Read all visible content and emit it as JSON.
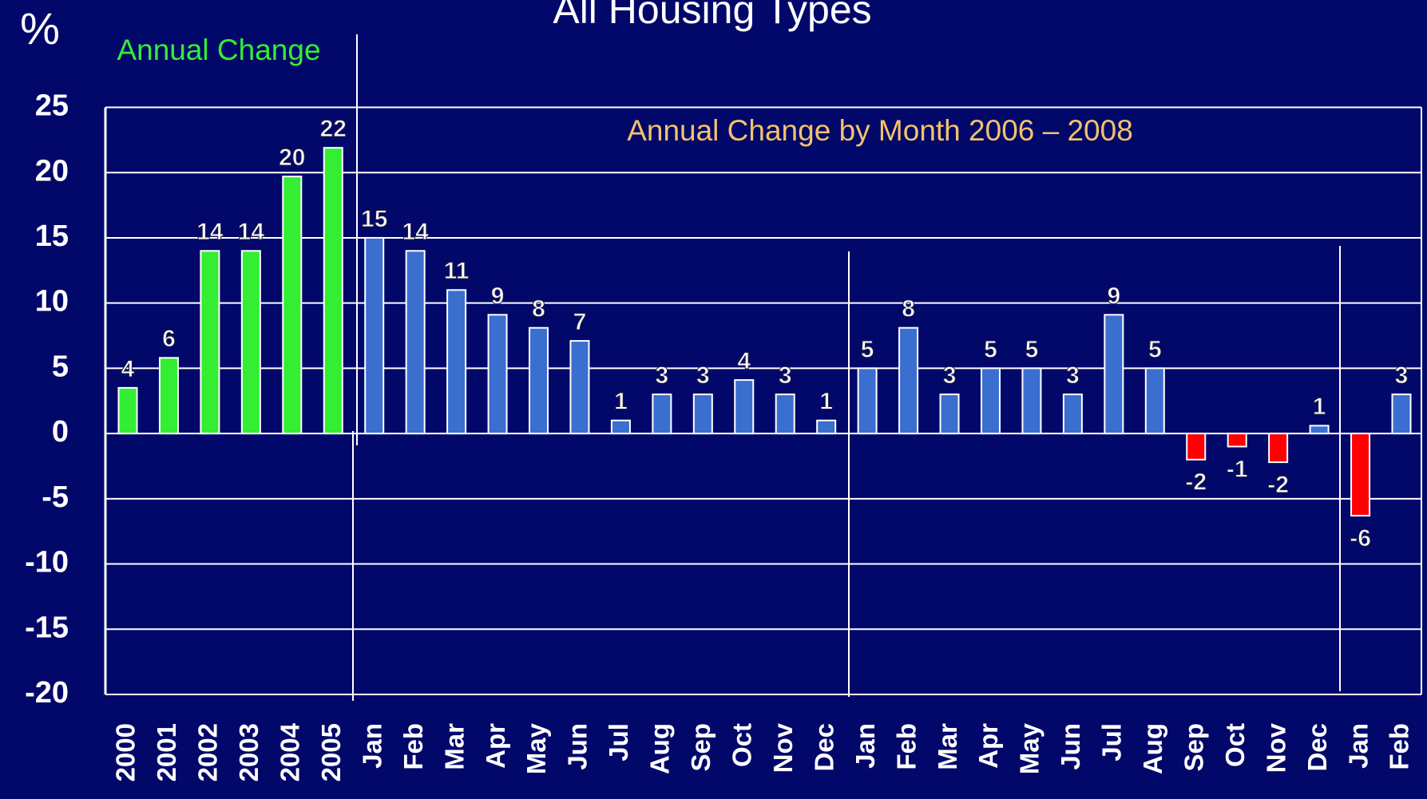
{
  "chart_data": {
    "type": "bar",
    "title": "All Housing Types",
    "ylabel": "%",
    "annotations": [
      "Annual Change",
      "Annual Change by Month 2006 – 2008"
    ],
    "categories": [
      "2000",
      "2001",
      "2002",
      "2003",
      "2004",
      "2005",
      "Jan",
      "Feb",
      "Mar",
      "Apr",
      "May",
      "Jun",
      "Jul",
      "Aug",
      "Sep",
      "Oct",
      "Nov",
      "Dec",
      "Jan",
      "Feb",
      "Mar",
      "Apr",
      "May",
      "Jun",
      "Jul",
      "Aug",
      "Sep",
      "Oct",
      "Nov",
      "Dec",
      "Jan",
      "Feb"
    ],
    "values": [
      3.5,
      5.8,
      14,
      14,
      19.7,
      21.9,
      15,
      14,
      11,
      9.1,
      8.1,
      7.1,
      1,
      3,
      3,
      4.1,
      3,
      1,
      5,
      8.1,
      3,
      5,
      5,
      3,
      9.1,
      5,
      -2,
      -1,
      -2.2,
      0.6,
      -6.3,
      3
    ],
    "value_labels": [
      "4",
      "6",
      "14",
      "14",
      "20",
      "22",
      "15",
      "14",
      "11",
      "9",
      "8",
      "7",
      "1",
      "3",
      "3",
      "4",
      "3",
      "1",
      "5",
      "8",
      "3",
      "5",
      "5",
      "3",
      "9",
      "5",
      "-2",
      "-1",
      "-2",
      "1",
      "-6",
      "3"
    ],
    "colors": [
      "#33ee33",
      "#33ee33",
      "#33ee33",
      "#33ee33",
      "#33ee33",
      "#33ee33",
      "#3a6fd0",
      "#3a6fd0",
      "#3a6fd0",
      "#3a6fd0",
      "#3a6fd0",
      "#3a6fd0",
      "#3a6fd0",
      "#3a6fd0",
      "#3a6fd0",
      "#3a6fd0",
      "#3a6fd0",
      "#3a6fd0",
      "#3a6fd0",
      "#3a6fd0",
      "#3a6fd0",
      "#3a6fd0",
      "#3a6fd0",
      "#3a6fd0",
      "#3a6fd0",
      "#3a6fd0",
      "#ff0000",
      "#ff0000",
      "#ff0000",
      "#3a6fd0",
      "#ff0000",
      "#3a6fd0"
    ],
    "ylim": [
      -20,
      25
    ],
    "yticks": [
      -20,
      -15,
      -10,
      -5,
      0,
      5,
      10,
      15,
      20,
      25
    ],
    "grid": true
  }
}
